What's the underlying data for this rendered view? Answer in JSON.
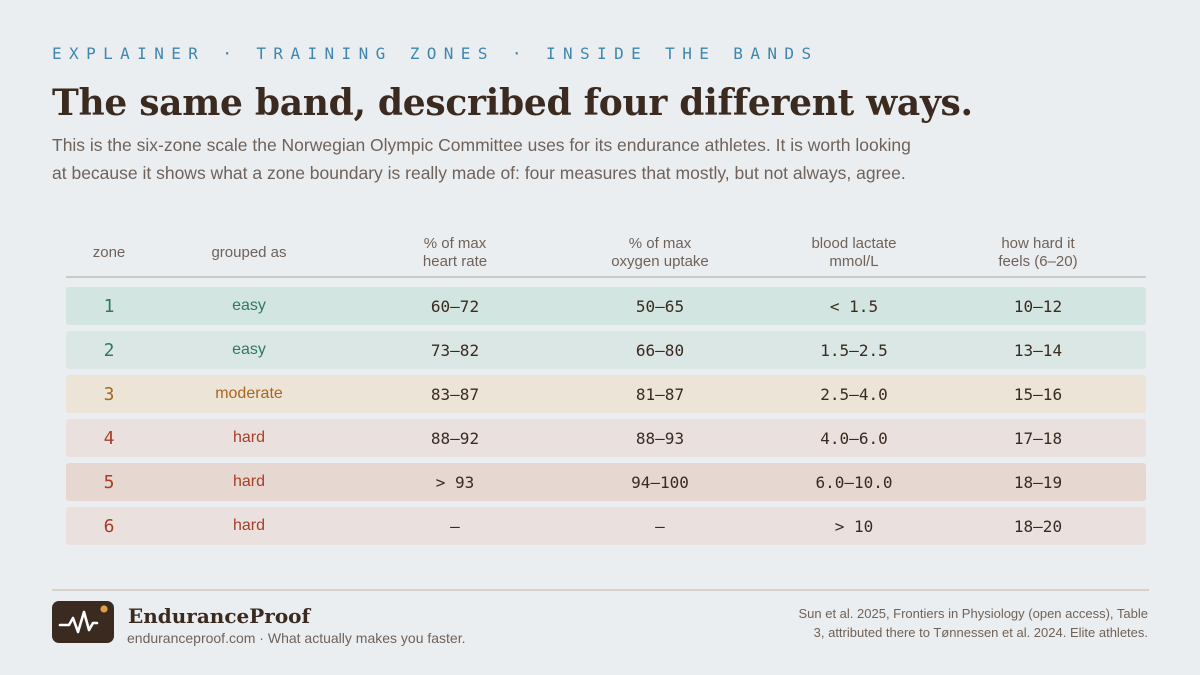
{
  "header": {
    "kicker": "EXPLAINER · TRAINING ZONES · INSIDE THE BANDS",
    "title": "The same band, described four different ways.",
    "lede": "This is the six-zone scale the Norwegian Olympic Committee uses for its endurance athletes. It is worth looking at because it shows what a zone boundary is really made of: four measures that mostly, but not always, agree."
  },
  "table": {
    "columns": [
      {
        "line1": "zone",
        "line2": ""
      },
      {
        "line1": "grouped as",
        "line2": ""
      },
      {
        "line1": "% of max",
        "line2": "heart rate"
      },
      {
        "line1": "% of max",
        "line2": "oxygen uptake"
      },
      {
        "line1": "blood lactate",
        "line2": "mmol/L"
      },
      {
        "line1": "how hard it",
        "line2": "feels (6–20)"
      }
    ],
    "rows": [
      {
        "zone": "1",
        "group": "easy",
        "hr": "60–72",
        "vo2": "50–65",
        "lactate": "< 1.5",
        "rpe": "10–12",
        "bg": "#d3e5e0",
        "fg": "#2f7a5c"
      },
      {
        "zone": "2",
        "group": "easy",
        "hr": "73–82",
        "vo2": "66–80",
        "lactate": "1.5–2.5",
        "rpe": "13–14",
        "bg": "#dbe7e4",
        "fg": "#2f7a5c"
      },
      {
        "zone": "3",
        "group": "moderate",
        "hr": "83–87",
        "vo2": "81–87",
        "lactate": "2.5–4.0",
        "rpe": "15–16",
        "bg": "#ece5d7",
        "fg": "#a8661e"
      },
      {
        "zone": "4",
        "group": "hard",
        "hr": "88–92",
        "vo2": "88–93",
        "lactate": "4.0–6.0",
        "rpe": "17–18",
        "bg": "#eae1df",
        "fg": "#a63f28"
      },
      {
        "zone": "5",
        "group": "hard",
        "hr": "> 93",
        "vo2": "94–100",
        "lactate": "6.0–10.0",
        "rpe": "18–19",
        "bg": "#e6d7d1",
        "fg": "#a63f28"
      },
      {
        "zone": "6",
        "group": "hard",
        "hr": "–",
        "vo2": "–",
        "lactate": "> 10",
        "rpe": "18–20",
        "bg": "#eae0dd",
        "fg": "#a63f28"
      }
    ]
  },
  "footer": {
    "brand": "EnduranceProof",
    "tagline": "enduranceproof.com · What actually makes you faster.",
    "source": "Sun et al. 2025, Frontiers in Physiology (open access), Table 3, attributed there to Tønnessen et al. 2024. Elite athletes.",
    "logo_icon": "heartbeat-pulse-icon",
    "accent_dot_color": "#e0a040"
  }
}
